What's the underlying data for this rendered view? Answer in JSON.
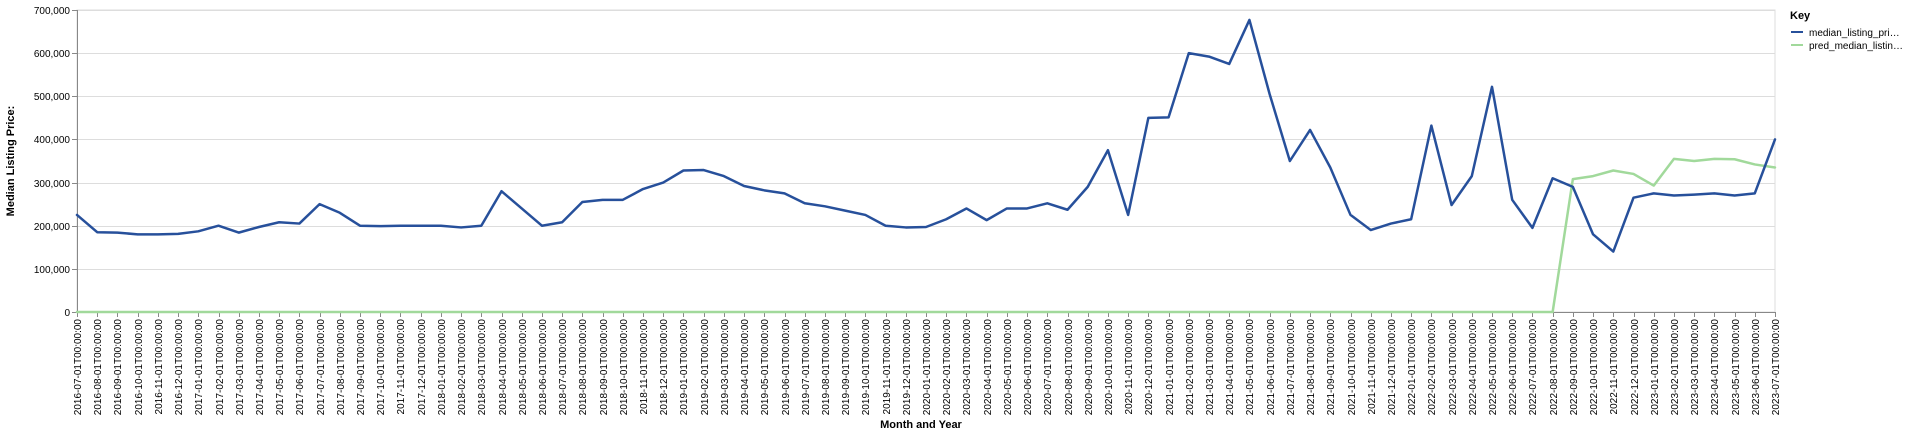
{
  "chart_data": {
    "type": "line",
    "xlabel": "Month and Year",
    "ylabel": "Median Listing Price:",
    "ylim": [
      0,
      700000
    ],
    "y_ticks": [
      "0",
      "100,000",
      "200,000",
      "300,000",
      "400,000",
      "500,000",
      "600,000",
      "700,000"
    ],
    "grid": true,
    "legend": {
      "title": "Key",
      "placement": "top-right",
      "items": [
        "median_listing_pri…",
        "pred_median_listin…"
      ]
    },
    "colors": {
      "median": "#27509b",
      "pred": "#a1d99b"
    },
    "x": [
      "2016-07-01T00:00:00",
      "2016-08-01T00:00:00",
      "2016-09-01T00:00:00",
      "2016-10-01T00:00:00",
      "2016-11-01T00:00:00",
      "2016-12-01T00:00:00",
      "2017-01-01T00:00:00",
      "2017-02-01T00:00:00",
      "2017-03-01T00:00:00",
      "2017-04-01T00:00:00",
      "2017-05-01T00:00:00",
      "2017-06-01T00:00:00",
      "2017-07-01T00:00:00",
      "2017-08-01T00:00:00",
      "2017-09-01T00:00:00",
      "2017-10-01T00:00:00",
      "2017-11-01T00:00:00",
      "2017-12-01T00:00:00",
      "2018-01-01T00:00:00",
      "2018-02-01T00:00:00",
      "2018-03-01T00:00:00",
      "2018-04-01T00:00:00",
      "2018-05-01T00:00:00",
      "2018-06-01T00:00:00",
      "2018-07-01T00:00:00",
      "2018-08-01T00:00:00",
      "2018-09-01T00:00:00",
      "2018-10-01T00:00:00",
      "2018-11-01T00:00:00",
      "2018-12-01T00:00:00",
      "2019-01-01T00:00:00",
      "2019-02-01T00:00:00",
      "2019-03-01T00:00:00",
      "2019-04-01T00:00:00",
      "2019-05-01T00:00:00",
      "2019-06-01T00:00:00",
      "2019-07-01T00:00:00",
      "2019-08-01T00:00:00",
      "2019-09-01T00:00:00",
      "2019-10-01T00:00:00",
      "2019-11-01T00:00:00",
      "2019-12-01T00:00:00",
      "2020-01-01T00:00:00",
      "2020-02-01T00:00:00",
      "2020-03-01T00:00:00",
      "2020-04-01T00:00:00",
      "2020-05-01T00:00:00",
      "2020-06-01T00:00:00",
      "2020-07-01T00:00:00",
      "2020-08-01T00:00:00",
      "2020-09-01T00:00:00",
      "2020-10-01T00:00:00",
      "2020-11-01T00:00:00",
      "2020-12-01T00:00:00",
      "2021-01-01T00:00:00",
      "2021-02-01T00:00:00",
      "2021-03-01T00:00:00",
      "2021-04-01T00:00:00",
      "2021-05-01T00:00:00",
      "2021-06-01T00:00:00",
      "2021-07-01T00:00:00",
      "2021-08-01T00:00:00",
      "2021-09-01T00:00:00",
      "2021-10-01T00:00:00",
      "2021-11-01T00:00:00",
      "2021-12-01T00:00:00",
      "2022-01-01T00:00:00",
      "2022-02-01T00:00:00",
      "2022-03-01T00:00:00",
      "2022-04-01T00:00:00",
      "2022-05-01T00:00:00",
      "2022-06-01T00:00:00",
      "2022-07-01T00:00:00",
      "2022-08-01T00:00:00",
      "2022-09-01T00:00:00",
      "2022-10-01T00:00:00",
      "2022-11-01T00:00:00",
      "2022-12-01T00:00:00",
      "2023-01-01T00:00:00",
      "2023-02-01T00:00:00",
      "2023-03-01T00:00:00",
      "2023-04-01T00:00:00",
      "2023-05-01T00:00:00",
      "2023-06-01T00:00:00",
      "2023-07-01T00:00:00"
    ],
    "series": [
      {
        "name": "median_listing_pri…",
        "values": [
          225000,
          185000,
          184000,
          180000,
          180000,
          181000,
          187000,
          200000,
          184000,
          197000,
          208000,
          205000,
          250000,
          230000,
          200000,
          199000,
          200000,
          200000,
          200000,
          196000,
          200000,
          280000,
          240000,
          200000,
          208000,
          255000,
          260000,
          260000,
          285000,
          300000,
          328000,
          329000,
          315000,
          292000,
          282000,
          275000,
          252000,
          245000,
          235000,
          225000,
          200000,
          196000,
          197000,
          215000,
          240000,
          213000,
          240000,
          240000,
          252000,
          237000,
          290000,
          375000,
          225000,
          450000,
          451000,
          600000,
          592000,
          575000,
          677000,
          505000,
          350000,
          422000,
          335000,
          225000,
          190000,
          205000,
          215000,
          432000,
          248000,
          315000,
          522000,
          260000,
          195000,
          310000,
          290000,
          180000,
          140000,
          265000,
          275000,
          270000,
          272000,
          275000,
          270000,
          275000,
          400000
        ]
      },
      {
        "name": "pred_median_listin…",
        "values": [
          0,
          0,
          0,
          0,
          0,
          0,
          0,
          0,
          0,
          0,
          0,
          0,
          0,
          0,
          0,
          0,
          0,
          0,
          0,
          0,
          0,
          0,
          0,
          0,
          0,
          0,
          0,
          0,
          0,
          0,
          0,
          0,
          0,
          0,
          0,
          0,
          0,
          0,
          0,
          0,
          0,
          0,
          0,
          0,
          0,
          0,
          0,
          0,
          0,
          0,
          0,
          0,
          0,
          0,
          0,
          0,
          0,
          0,
          0,
          0,
          0,
          0,
          0,
          0,
          0,
          0,
          0,
          0,
          0,
          0,
          0,
          0,
          0,
          0,
          308000,
          315000,
          328000,
          320000,
          293000,
          355000,
          350000,
          355000,
          354000,
          342000,
          335000
        ]
      }
    ]
  }
}
